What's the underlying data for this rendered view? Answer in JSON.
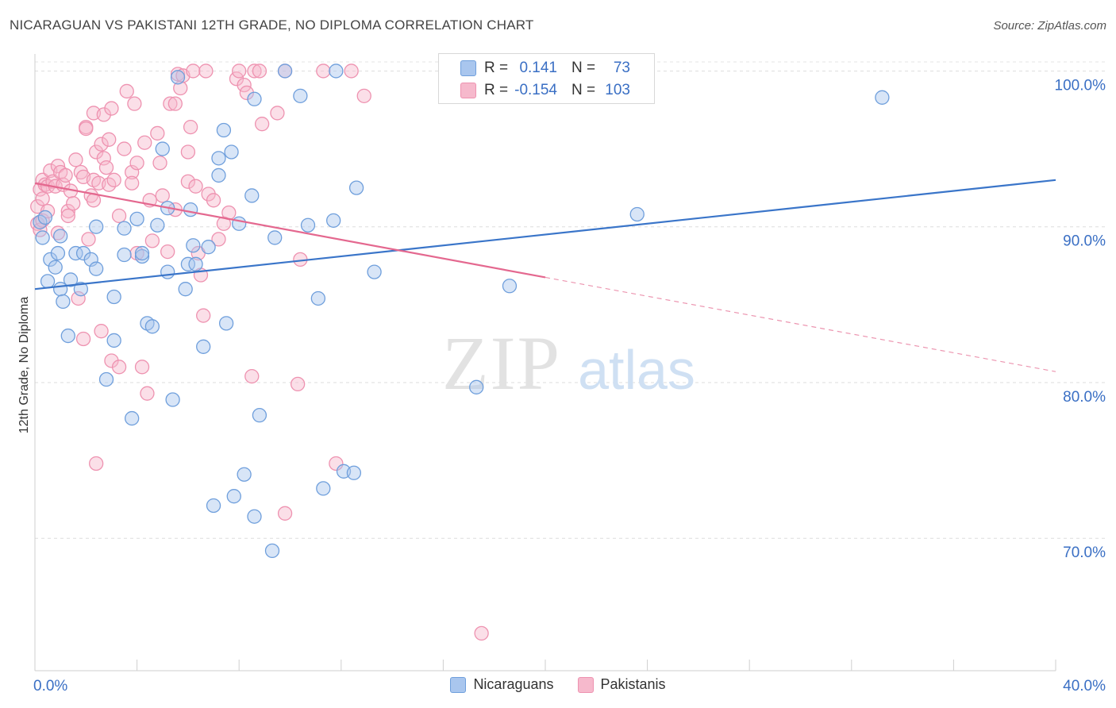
{
  "header": {
    "title": "NICARAGUAN VS PAKISTANI 12TH GRADE, NO DIPLOMA CORRELATION CHART",
    "source": "Source: ZipAtlas.com"
  },
  "legend": {
    "rows": [
      {
        "r_label": "R =",
        "r_value": "0.141",
        "n_label": "N =",
        "n_value": "73"
      },
      {
        "r_label": "R =",
        "r_value": "-0.154",
        "n_label": "N =",
        "n_value": "103"
      }
    ]
  },
  "watermark": {
    "part1": "ZIP",
    "part2": "atlas"
  },
  "colors": {
    "blue_fill": "#a9c6ee",
    "blue_stroke": "#6f9fdc",
    "blue_line": "#3a75c9",
    "pink_fill": "#f6b9cc",
    "pink_stroke": "#ee92b0",
    "pink_line": "#e4688f",
    "tick_label": "#3a6fc4"
  },
  "chart_data": {
    "type": "scatter",
    "title": "NICARAGUAN VS PAKISTANI 12TH GRADE, NO DIPLOMA CORRELATION CHART",
    "xlabel": "",
    "ylabel": "12th Grade, No Diploma",
    "xlim": [
      0,
      40
    ],
    "ylim": [
      61.5,
      101.5
    ],
    "x_ticks": [
      0,
      4,
      8,
      12,
      16,
      20,
      24,
      28,
      32,
      36,
      40
    ],
    "x_tick_labels": [
      "0.0%",
      "",
      "",
      "",
      "",
      "",
      "",
      "",
      "",
      "",
      "40.0%"
    ],
    "y_ticks": [
      100,
      90,
      80,
      70
    ],
    "y_tick_labels": [
      "100.0%",
      "90.0%",
      "80.0%",
      "70.0%"
    ],
    "grid": true,
    "legend_position": "top-center",
    "series": [
      {
        "name": "Nicaraguans",
        "r": 0.141,
        "n": 73,
        "trend": {
          "x": [
            0,
            40
          ],
          "y": [
            86.0,
            93.0
          ],
          "dashed_from": null
        },
        "points": [
          [
            0.2,
            90.3
          ],
          [
            0.3,
            89.3
          ],
          [
            0.5,
            86.5
          ],
          [
            0.6,
            87.9
          ],
          [
            0.8,
            87.4
          ],
          [
            0.9,
            88.3
          ],
          [
            1.0,
            86.0
          ],
          [
            1.1,
            85.2
          ],
          [
            1.3,
            83.0
          ],
          [
            1.4,
            86.6
          ],
          [
            1.6,
            88.3
          ],
          [
            1.8,
            86.0
          ],
          [
            1.9,
            88.3
          ],
          [
            2.2,
            87.9
          ],
          [
            2.4,
            87.3
          ],
          [
            2.4,
            90.0
          ],
          [
            2.8,
            80.2
          ],
          [
            3.1,
            82.7
          ],
          [
            3.1,
            85.5
          ],
          [
            3.5,
            88.2
          ],
          [
            3.5,
            89.9
          ],
          [
            3.8,
            77.7
          ],
          [
            4.0,
            90.5
          ],
          [
            4.2,
            88.1
          ],
          [
            4.2,
            88.3
          ],
          [
            4.4,
            83.8
          ],
          [
            4.6,
            83.6
          ],
          [
            4.8,
            90.1
          ],
          [
            5.0,
            95.0
          ],
          [
            5.2,
            91.2
          ],
          [
            5.2,
            87.1
          ],
          [
            5.4,
            78.9
          ],
          [
            5.6,
            99.6
          ],
          [
            5.9,
            86.0
          ],
          [
            6.0,
            87.6
          ],
          [
            6.1,
            91.1
          ],
          [
            6.2,
            88.8
          ],
          [
            6.3,
            87.6
          ],
          [
            6.6,
            82.3
          ],
          [
            6.8,
            88.7
          ],
          [
            7.0,
            72.1
          ],
          [
            7.2,
            93.3
          ],
          [
            7.2,
            94.4
          ],
          [
            7.4,
            96.2
          ],
          [
            7.5,
            83.8
          ],
          [
            7.7,
            94.8
          ],
          [
            7.8,
            72.7
          ],
          [
            8.0,
            90.2
          ],
          [
            8.2,
            74.1
          ],
          [
            8.5,
            92.0
          ],
          [
            8.6,
            98.2
          ],
          [
            8.6,
            71.4
          ],
          [
            8.8,
            77.9
          ],
          [
            9.3,
            69.2
          ],
          [
            9.4,
            89.3
          ],
          [
            9.8,
            100.0
          ],
          [
            10.4,
            98.4
          ],
          [
            10.7,
            90.1
          ],
          [
            11.1,
            85.4
          ],
          [
            11.3,
            73.2
          ],
          [
            11.7,
            90.4
          ],
          [
            11.8,
            100.0
          ],
          [
            12.1,
            74.3
          ],
          [
            12.5,
            74.2
          ],
          [
            12.6,
            92.5
          ],
          [
            13.3,
            87.1
          ],
          [
            17.3,
            79.7
          ],
          [
            18.6,
            86.2
          ],
          [
            19.1,
            100.0
          ],
          [
            23.6,
            90.8
          ],
          [
            33.2,
            98.3
          ],
          [
            0.4,
            90.6
          ],
          [
            1.0,
            89.4
          ]
        ]
      },
      {
        "name": "Pakistanis",
        "r": -0.154,
        "n": 103,
        "trend": {
          "x": [
            0,
            40
          ],
          "y": [
            92.8,
            80.7
          ],
          "dashed_from": 20
        },
        "points": [
          [
            0.1,
            91.3
          ],
          [
            0.1,
            90.2
          ],
          [
            0.2,
            89.8
          ],
          [
            0.2,
            92.4
          ],
          [
            0.3,
            91.8
          ],
          [
            0.3,
            93.0
          ],
          [
            0.3,
            90.4
          ],
          [
            0.4,
            92.7
          ],
          [
            0.5,
            92.6
          ],
          [
            0.5,
            91.0
          ],
          [
            0.6,
            93.6
          ],
          [
            0.7,
            92.9
          ],
          [
            0.8,
            92.6
          ],
          [
            0.9,
            89.6
          ],
          [
            0.9,
            93.9
          ],
          [
            1.0,
            93.5
          ],
          [
            1.1,
            92.7
          ],
          [
            1.2,
            93.3
          ],
          [
            1.3,
            91.0
          ],
          [
            1.3,
            90.7
          ],
          [
            1.4,
            92.3
          ],
          [
            1.5,
            91.5
          ],
          [
            1.6,
            94.3
          ],
          [
            1.7,
            85.4
          ],
          [
            1.8,
            93.5
          ],
          [
            1.9,
            93.2
          ],
          [
            1.9,
            82.8
          ],
          [
            2.0,
            96.4
          ],
          [
            2.0,
            96.3
          ],
          [
            2.1,
            89.2
          ],
          [
            2.2,
            92.0
          ],
          [
            2.3,
            93.0
          ],
          [
            2.3,
            91.7
          ],
          [
            2.3,
            97.3
          ],
          [
            2.4,
            94.8
          ],
          [
            2.5,
            92.8
          ],
          [
            2.6,
            95.3
          ],
          [
            2.6,
            83.3
          ],
          [
            2.7,
            97.2
          ],
          [
            2.7,
            94.4
          ],
          [
            2.8,
            93.8
          ],
          [
            2.9,
            95.6
          ],
          [
            2.9,
            92.7
          ],
          [
            3.0,
            97.6
          ],
          [
            3.0,
            81.4
          ],
          [
            3.1,
            93.0
          ],
          [
            3.3,
            90.7
          ],
          [
            3.3,
            81.0
          ],
          [
            3.5,
            95.0
          ],
          [
            3.6,
            98.7
          ],
          [
            3.8,
            93.5
          ],
          [
            3.8,
            92.8
          ],
          [
            3.9,
            97.9
          ],
          [
            4.0,
            94.1
          ],
          [
            4.0,
            88.3
          ],
          [
            4.2,
            81.0
          ],
          [
            4.3,
            95.4
          ],
          [
            4.4,
            79.3
          ],
          [
            4.5,
            91.7
          ],
          [
            4.6,
            89.1
          ],
          [
            4.8,
            96.0
          ],
          [
            4.9,
            94.1
          ],
          [
            5.0,
            92.0
          ],
          [
            5.2,
            88.4
          ],
          [
            5.3,
            97.9
          ],
          [
            5.5,
            91.1
          ],
          [
            5.5,
            97.9
          ],
          [
            5.6,
            99.8
          ],
          [
            5.7,
            98.9
          ],
          [
            5.8,
            99.7
          ],
          [
            6.0,
            94.8
          ],
          [
            6.0,
            92.9
          ],
          [
            6.1,
            96.4
          ],
          [
            6.2,
            100.0
          ],
          [
            6.3,
            92.6
          ],
          [
            6.4,
            88.3
          ],
          [
            6.5,
            86.9
          ],
          [
            6.6,
            84.3
          ],
          [
            6.7,
            100.0
          ],
          [
            6.8,
            92.1
          ],
          [
            7.0,
            91.7
          ],
          [
            7.2,
            89.2
          ],
          [
            7.4,
            90.2
          ],
          [
            7.6,
            90.9
          ],
          [
            7.9,
            99.5
          ],
          [
            8.0,
            100.0
          ],
          [
            8.2,
            99.1
          ],
          [
            8.3,
            98.6
          ],
          [
            8.5,
            80.4
          ],
          [
            8.6,
            100.0
          ],
          [
            8.8,
            100.0
          ],
          [
            8.9,
            96.6
          ],
          [
            9.5,
            97.3
          ],
          [
            9.8,
            100.0
          ],
          [
            9.8,
            71.6
          ],
          [
            10.3,
            79.9
          ],
          [
            10.4,
            87.9
          ],
          [
            11.3,
            100.0
          ],
          [
            11.8,
            74.8
          ],
          [
            12.4,
            100.0
          ],
          [
            12.9,
            98.4
          ],
          [
            17.5,
            63.9
          ],
          [
            2.4,
            74.8
          ]
        ]
      }
    ]
  }
}
